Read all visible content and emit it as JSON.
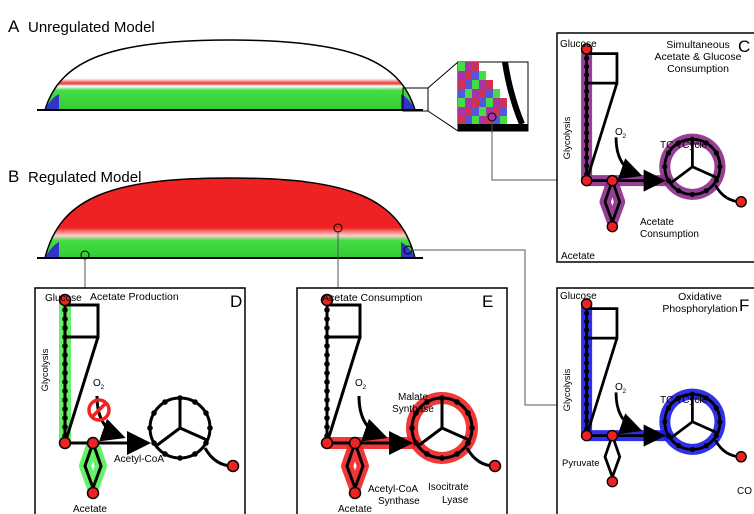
{
  "panel_a": {
    "letter": "A",
    "title": "Unregulated Model"
  },
  "panel_b": {
    "letter": "B",
    "title": "Regulated Model"
  },
  "panel_c": {
    "letter": "C",
    "glucose": "Glucose",
    "title": [
      "Simultaneous",
      "Acetate & Glucose",
      "Consumption"
    ],
    "pathway": "Glycolysis",
    "oxygen": {
      "symbol": "O",
      "subscript": "2"
    },
    "cycle": "TCA Cycle",
    "flux": [
      "Acetate",
      "Consumption"
    ],
    "product": "Acetate"
  },
  "panel_d": {
    "letter": "D",
    "glucose": "Glucose",
    "title": "Acetate Production",
    "pathway": "Glycolysis",
    "oxygen": {
      "symbol": "O",
      "subscript": "2"
    },
    "intermediate": "Acetyl-CoA",
    "product": "Acetate"
  },
  "panel_e": {
    "letter": "E",
    "title": "Acetate Consumption",
    "oxygen": {
      "symbol": "O",
      "subscript": "2"
    },
    "enzyme_1": [
      "Malate",
      "Synthase"
    ],
    "enzyme_2": [
      "Acetyl-CoA",
      "Synthase"
    ],
    "enzyme_3": [
      "Isocitrate",
      "Lyase"
    ],
    "product": "Acetate"
  },
  "panel_f": {
    "letter": "F",
    "glucose": "Glucose",
    "title": [
      "Oxidative",
      "Phosphorylation"
    ],
    "pathway": "Glycolysis",
    "oxygen": {
      "symbol": "O",
      "subscript": "2"
    },
    "cycle": "TCA Cycle",
    "intermediate": "Pyruvate",
    "product": "CO"
  }
}
